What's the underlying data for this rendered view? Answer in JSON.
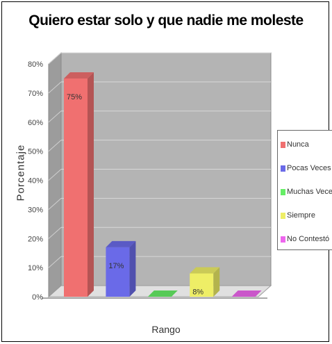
{
  "chart_data": {
    "type": "bar",
    "title": "Quiero estar solo y que nadie me moleste",
    "xlabel": "Rango",
    "ylabel": "Porcentaje",
    "ylim": [
      0,
      80
    ],
    "yticks": [
      "0%",
      "10%",
      "20%",
      "30%",
      "40%",
      "50%",
      "60%",
      "70%",
      "80%"
    ],
    "categories": [
      "Nunca",
      "Pocas Veces",
      "Muchas Veces",
      "Siempre",
      "No Contestó"
    ],
    "values": [
      75,
      17,
      0,
      8,
      0
    ],
    "data_labels": [
      "75%",
      "17%",
      "",
      "8%",
      ""
    ],
    "colors": [
      "#f07070",
      "#6a6ae8",
      "#66ee66",
      "#eeee66",
      "#ee66ee"
    ],
    "grid": true,
    "legend_position": "right"
  }
}
